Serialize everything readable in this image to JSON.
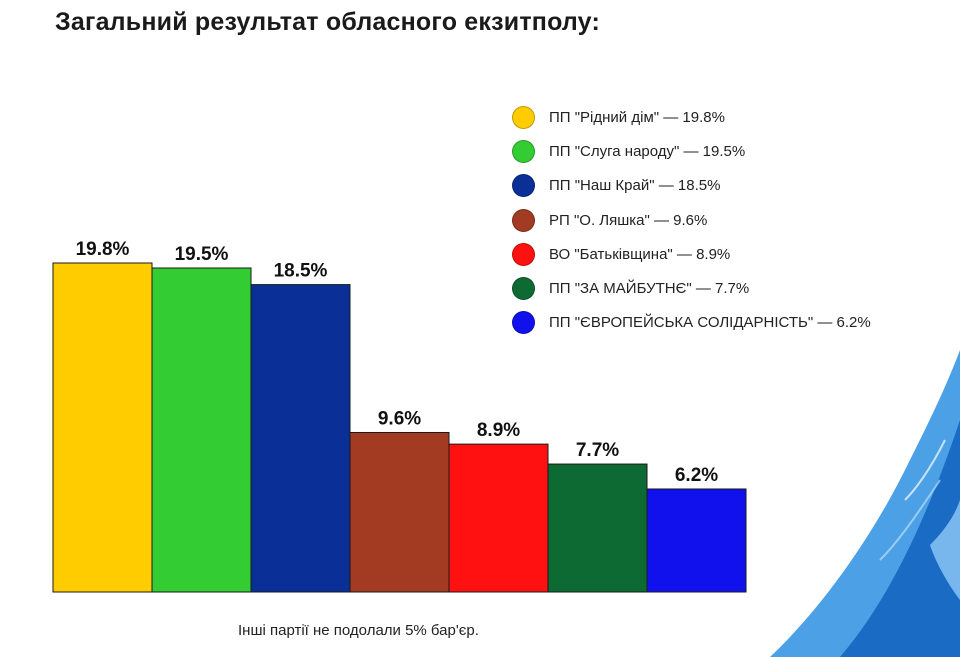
{
  "title": "Загальний результат обласного екзитполу:",
  "note": "Інші партії не подолали 5% бар'єр.",
  "chart_data": {
    "type": "bar",
    "title": "Загальний результат обласного екзитполу:",
    "xlabel": "",
    "ylabel": "",
    "ylim": [
      0,
      20
    ],
    "grid": false,
    "legend_position": "top-right",
    "categories": [
      "ПП \"Рідний дім\"",
      "ПП \"Слуга народу\"",
      "ПП \"Наш Край\"",
      "РП \"О. Ляшка\"",
      "ВО \"Батьківщина\"",
      "ПП \"ЗА МАЙБУТНЄ\"",
      "ПП \"ЄВРОПЕЙСЬКА СОЛІДАРНІСТЬ\""
    ],
    "values": [
      19.8,
      19.5,
      18.5,
      9.6,
      8.9,
      7.7,
      6.2
    ],
    "value_labels": [
      "19.8%",
      "19.5%",
      "18.5%",
      "9.6%",
      "8.9%",
      "7.7%",
      "6.2%"
    ],
    "colors": [
      "#FFCC00",
      "#33CC33",
      "#0A2F96",
      "#A33A22",
      "#FF1111",
      "#0E6A33",
      "#1111EE"
    ],
    "legend": [
      "ПП \"Рідний дім\" — 19.8%",
      "ПП \"Слуга народу\" — 19.5%",
      "ПП \"Наш Край\" — 18.5%",
      "РП \"О. Ляшка\" — 9.6%",
      "ВО \"Батьківщина\" — 8.9%",
      "ПП \"ЗА МАЙБУТНЄ\" — 7.7%",
      "ПП \"ЄВРОПЕЙСЬКА СОЛІДАРНІСТЬ\" — 6.2%"
    ]
  },
  "accent_color": "#1E88E5"
}
